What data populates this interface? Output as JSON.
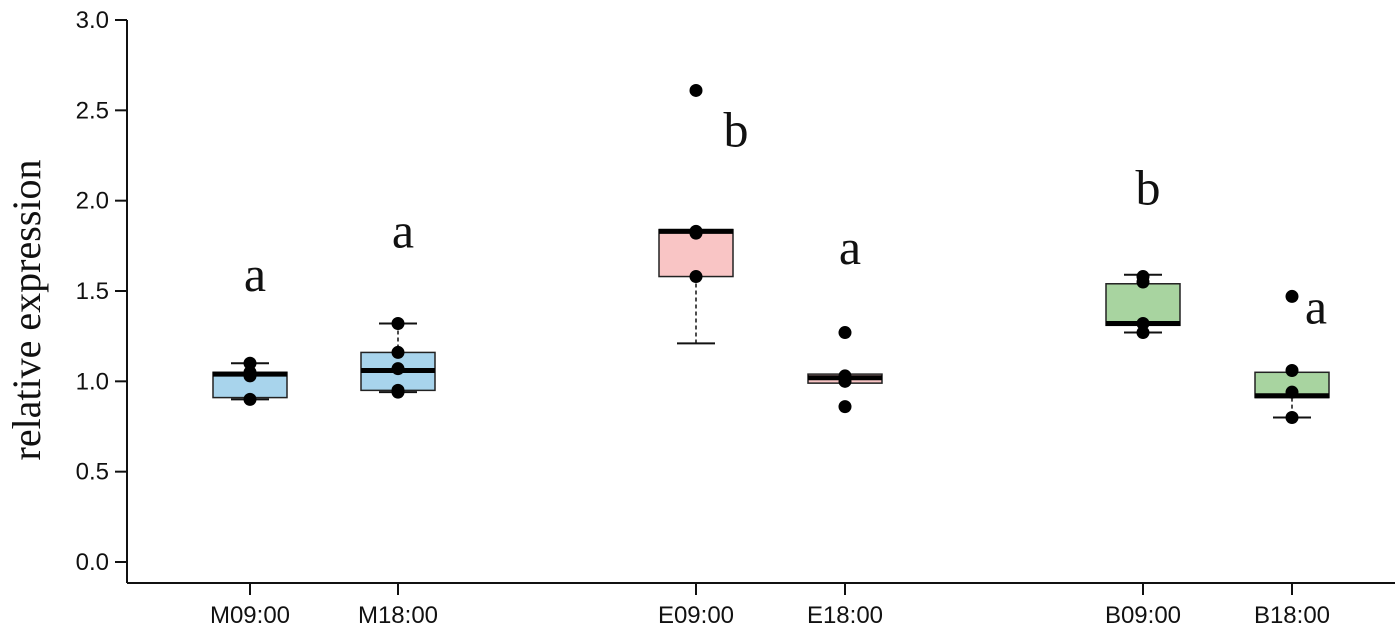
{
  "chart_data": {
    "type": "box",
    "title": "",
    "xlabel": "",
    "ylabel": "relative expression",
    "ylim": [
      0,
      3.0
    ],
    "yticks": [
      "0.0",
      "0.5",
      "1.0",
      "1.5",
      "2.0",
      "2.5",
      "3.0"
    ],
    "grid": false,
    "groups": [
      {
        "label": "M09:00",
        "color": "#a8d4ec",
        "q1": 0.91,
        "median": 1.04,
        "q3": 1.05,
        "whisker_low": 0.9,
        "whisker_high": 1.1,
        "points": [
          0.9,
          1.03,
          1.05,
          1.1
        ],
        "letter": "a",
        "letter_y": 1.5
      },
      {
        "label": "M18:00",
        "color": "#a8d4ec",
        "q1": 0.95,
        "median": 1.06,
        "q3": 1.16,
        "whisker_low": 0.94,
        "whisker_high": 1.32,
        "points": [
          0.94,
          0.95,
          1.07,
          1.16,
          1.32
        ],
        "letter": "a",
        "letter_y": 1.74
      },
      {
        "label": "E09:00",
        "color": "#f9c5c5",
        "q1": 1.58,
        "median": 1.83,
        "q3": 1.84,
        "whisker_low": 1.21,
        "whisker_high": 1.84,
        "points": [
          1.58,
          1.82,
          1.83,
          2.61
        ],
        "letter": "b",
        "letter_y": 2.3
      },
      {
        "label": "E18:00",
        "color": "#f9c5c5",
        "q1": 0.99,
        "median": 1.02,
        "q3": 1.04,
        "whisker_low": 0.99,
        "whisker_high": 1.04,
        "points": [
          0.86,
          1.0,
          1.03,
          1.27
        ],
        "letter": "a",
        "letter_y": 1.65
      },
      {
        "label": "B09:00",
        "color": "#a8d4a0",
        "q1": 1.31,
        "median": 1.32,
        "q3": 1.54,
        "whisker_low": 1.27,
        "whisker_high": 1.59,
        "points": [
          1.27,
          1.32,
          1.55,
          1.58
        ],
        "letter": "b",
        "letter_y": 1.98
      },
      {
        "label": "B18:00",
        "color": "#a8d4a0",
        "q1": 0.91,
        "median": 0.92,
        "q3": 1.05,
        "whisker_low": 0.8,
        "whisker_high": 1.05,
        "points": [
          0.8,
          0.94,
          1.06,
          1.47
        ],
        "letter": "a",
        "letter_y": 1.32
      }
    ]
  }
}
